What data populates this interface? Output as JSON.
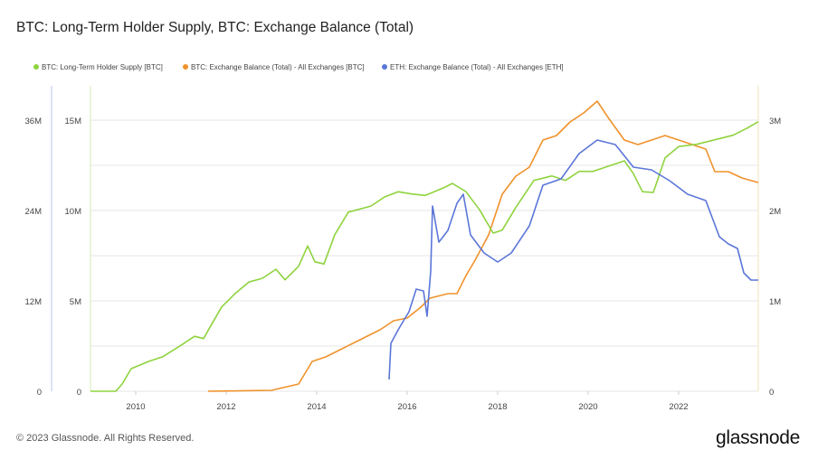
{
  "title": "BTC: Long-Term Holder Supply, BTC: Exchange Balance (Total)",
  "footer": "© 2023 Glassnode. All Rights Reserved.",
  "logo": "glassnode",
  "chart_data": {
    "type": "line",
    "title": "BTC: Long-Term Holder Supply, BTC: Exchange Balance (Total)",
    "xlim": [
      2009.0,
      2023.76
    ],
    "x_ticks": [
      2010,
      2012,
      2014,
      2016,
      2018,
      2020,
      2022
    ],
    "x_tick_labels": [
      "2010",
      "2012",
      "2014",
      "2016",
      "2018",
      "2020",
      "2022"
    ],
    "legend_position": "top-left",
    "grid": true,
    "axes": {
      "left_outer": {
        "ylim": [
          0,
          36000000
        ],
        "ticks": [
          0,
          12000000,
          24000000,
          36000000
        ],
        "labels": [
          "0",
          "12M",
          "24M",
          "36M"
        ]
      },
      "left_inner": {
        "ylim": [
          0,
          15000000
        ],
        "ticks": [
          0,
          5000000,
          10000000,
          15000000
        ],
        "labels": [
          "0",
          "5M",
          "10M",
          "15M"
        ]
      },
      "right": {
        "ylim": [
          0,
          3000000
        ],
        "ticks": [
          0,
          1000000,
          2000000,
          3000000
        ],
        "labels": [
          "0",
          "1M",
          "2M",
          "3M"
        ]
      }
    },
    "series": [
      {
        "name": "BTC: Long-Term Holder Supply [BTC]",
        "color": "#8fd33f",
        "axis": "left_outer",
        "x": [
          2009.0,
          2009.56,
          2009.7,
          2009.9,
          2010.3,
          2010.6,
          2011.0,
          2011.3,
          2011.5,
          2011.64,
          2011.9,
          2012.2,
          2012.5,
          2012.8,
          2013.1,
          2013.3,
          2013.6,
          2013.8,
          2013.96,
          2014.16,
          2014.4,
          2014.7,
          2014.9,
          2015.2,
          2015.5,
          2015.8,
          2016.1,
          2016.4,
          2016.8,
          2017.0,
          2017.3,
          2017.6,
          2017.9,
          2018.1,
          2018.4,
          2018.8,
          2019.2,
          2019.5,
          2019.8,
          2020.1,
          2020.4,
          2020.8,
          2021.0,
          2021.2,
          2021.44,
          2021.7,
          2022.0,
          2022.4,
          2022.8,
          2023.2,
          2023.5,
          2023.76
        ],
        "y": [
          0,
          0,
          960000,
          3000000,
          4000000,
          4600000,
          6100000,
          7300000,
          7000000,
          8500000,
          11200000,
          13000000,
          14500000,
          15000000,
          16200000,
          14800000,
          16600000,
          19300000,
          17200000,
          16900000,
          20800000,
          23800000,
          24100000,
          24600000,
          25800000,
          26500000,
          26200000,
          26000000,
          27000000,
          27600000,
          26500000,
          24100000,
          21000000,
          21400000,
          24400000,
          28000000,
          28600000,
          28000000,
          29200000,
          29200000,
          29800000,
          30600000,
          28900000,
          26500000,
          26400000,
          31000000,
          32500000,
          32800000,
          33400000,
          34000000,
          34900000,
          35800000
        ]
      },
      {
        "name": "BTC: Exchange Balance (Total) - All Exchanges [BTC]",
        "color": "#f0922b",
        "axis": "left_inner",
        "x": [
          2011.6,
          2013.0,
          2013.6,
          2013.9,
          2014.2,
          2014.6,
          2015.0,
          2015.4,
          2015.7,
          2016.0,
          2016.3,
          2016.5,
          2016.9,
          2017.1,
          2017.3,
          2017.5,
          2017.8,
          2018.1,
          2018.4,
          2018.7,
          2019.0,
          2019.3,
          2019.6,
          2019.9,
          2020.2,
          2020.44,
          2020.8,
          2021.1,
          2021.4,
          2021.7,
          2022.0,
          2022.3,
          2022.6,
          2022.8,
          2023.1,
          2023.4,
          2023.76
        ],
        "y": [
          0,
          50000,
          400000,
          1650000,
          1900000,
          2400000,
          2900000,
          3400000,
          3900000,
          4050000,
          4650000,
          5150000,
          5400000,
          5400000,
          6400000,
          7250000,
          8650000,
          10900000,
          11900000,
          12400000,
          13900000,
          14150000,
          14900000,
          15400000,
          16050000,
          15150000,
          13900000,
          13650000,
          13900000,
          14150000,
          13900000,
          13650000,
          13400000,
          12150000,
          12150000,
          11800000,
          11550000
        ]
      },
      {
        "name": "ETH: Exchange Balance (Total) - All Exchanges [ETH]",
        "color": "#5b76d8",
        "axis": "right",
        "x": [
          2015.6,
          2015.64,
          2015.8,
          2016.04,
          2016.2,
          2016.36,
          2016.44,
          2016.52,
          2016.56,
          2016.7,
          2016.9,
          2017.1,
          2017.24,
          2017.4,
          2017.7,
          2018.0,
          2018.3,
          2018.7,
          2019.0,
          2019.4,
          2019.8,
          2020.2,
          2020.6,
          2021.0,
          2021.4,
          2021.8,
          2022.2,
          2022.6,
          2022.9,
          2023.1,
          2023.3,
          2023.44,
          2023.6,
          2023.76
        ],
        "y": [
          130000,
          530000,
          680000,
          880000,
          1130000,
          1110000,
          830000,
          1330000,
          2050000,
          1650000,
          1780000,
          2080000,
          2180000,
          1730000,
          1530000,
          1430000,
          1530000,
          1830000,
          2280000,
          2350000,
          2630000,
          2780000,
          2730000,
          2480000,
          2450000,
          2330000,
          2180000,
          2110000,
          1710000,
          1630000,
          1580000,
          1310000,
          1230000,
          1230000
        ]
      }
    ]
  }
}
